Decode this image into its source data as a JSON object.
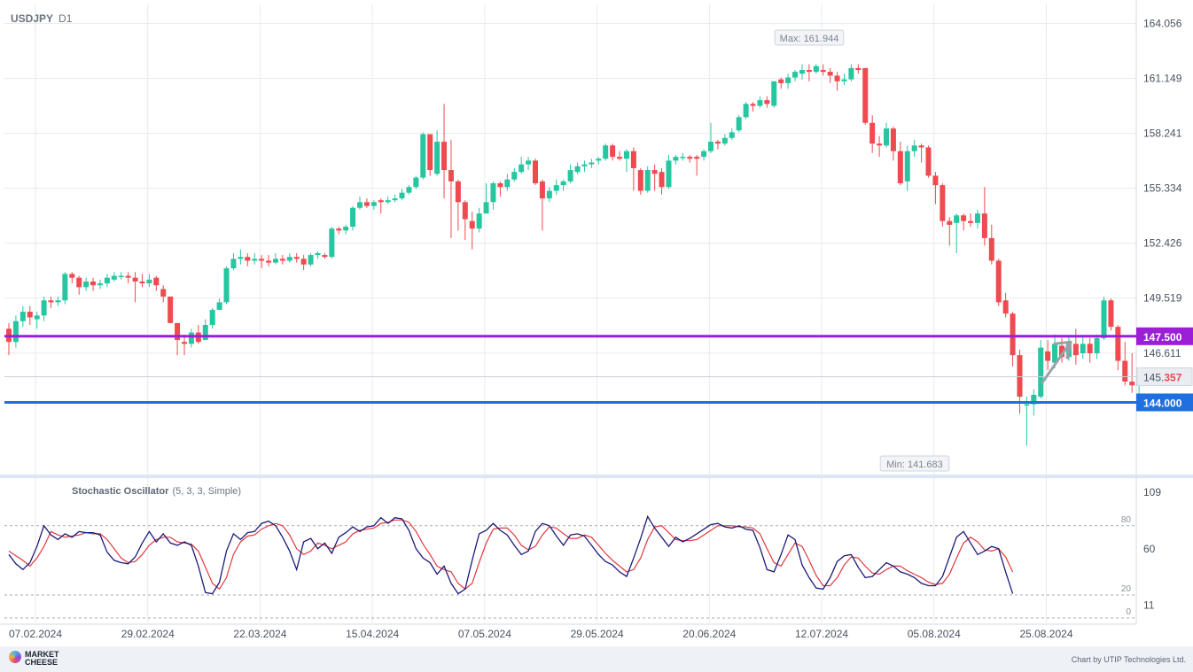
{
  "header": {
    "symbol": "USDJPY",
    "timeframe": "D1"
  },
  "oscillator": {
    "name": "Stochastic Oscillator",
    "params": "(5, 3, 3, Simple)"
  },
  "footer": {
    "logo_line1": "MARKET",
    "logo_line2": "CHEESE",
    "credit": "Chart by UTIP Technologies Ltd."
  },
  "colors": {
    "up": "#26c6a0",
    "down": "#ef4a4f",
    "level_147": "#9b1fd6",
    "level_144": "#1e6fe0",
    "k_line": "#1c1a78",
    "d_line": "#e0393f",
    "grid": "#e6eaf0"
  },
  "chart_data": {
    "type": "candlestick",
    "symbol": "USDJPY",
    "timeframe": "D1",
    "price_axis": {
      "ticks": [
        "164.056",
        "161.149",
        "158.241",
        "155.334",
        "152.426",
        "149.519",
        "146.611"
      ],
      "range": [
        140.6,
        164.6
      ]
    },
    "date_axis": {
      "ticks": [
        "07.02.2024",
        "29.02.2024",
        "22.03.2024",
        "15.04.2024",
        "07.05.2024",
        "29.05.2024",
        "20.06.2024",
        "12.07.2024",
        "05.08.2024",
        "25.08.2024"
      ]
    },
    "levels": [
      {
        "label": "147.500",
        "value": 147.5,
        "color": "#9b1fd6"
      },
      {
        "label": "144.000",
        "value": 144.0,
        "color": "#1e6fe0"
      }
    ],
    "current_price": {
      "main": "145.",
      "highlight": "357",
      "value": 145.357
    },
    "annotations": {
      "max": "Max: 161.944",
      "min": "Min: 141.683"
    },
    "arrow": {
      "direction": "up",
      "from": 145.7,
      "to": 147.2
    },
    "candles": [
      [
        147.9,
        147.2,
        148.2,
        146.5
      ],
      [
        147.2,
        148.3,
        148.6,
        146.9
      ],
      [
        148.3,
        148.8,
        149.1,
        148.0
      ],
      [
        148.8,
        148.5,
        149.1,
        148.1
      ],
      [
        148.4,
        148.6,
        148.8,
        147.9
      ],
      [
        148.6,
        149.4,
        149.6,
        148.3
      ],
      [
        149.4,
        149.3,
        149.6,
        149.0
      ],
      [
        149.3,
        149.4,
        149.6,
        149.1
      ],
      [
        149.4,
        150.8,
        150.9,
        149.2
      ],
      [
        150.8,
        150.6,
        150.9,
        150.3
      ],
      [
        150.6,
        150.1,
        150.7,
        149.7
      ],
      [
        150.1,
        150.4,
        150.6,
        149.9
      ],
      [
        150.4,
        150.2,
        150.6,
        149.9
      ],
      [
        150.2,
        150.3,
        150.5,
        150.0
      ],
      [
        150.3,
        150.6,
        150.8,
        150.1
      ],
      [
        150.5,
        150.7,
        150.9,
        150.4
      ],
      [
        150.7,
        150.7,
        150.9,
        150.5
      ],
      [
        150.7,
        150.6,
        150.9,
        150.3
      ],
      [
        150.6,
        150.4,
        150.9,
        149.3
      ],
      [
        150.4,
        150.3,
        150.8,
        150.1
      ],
      [
        150.3,
        150.5,
        150.8,
        150.1
      ],
      [
        150.6,
        150.2,
        150.7,
        149.9
      ],
      [
        150.0,
        149.6,
        150.2,
        149.3
      ],
      [
        149.6,
        148.2,
        149.6,
        148.2
      ],
      [
        148.2,
        147.3,
        147.8,
        146.5
      ],
      [
        147.2,
        147.1,
        147.6,
        146.5
      ],
      [
        147.1,
        147.7,
        147.9,
        146.9
      ],
      [
        147.7,
        147.2,
        148.1,
        147.1
      ],
      [
        147.3,
        148.1,
        148.4,
        147.8
      ],
      [
        148.1,
        148.9,
        149.0,
        147.9
      ],
      [
        148.9,
        149.3,
        149.5,
        148.9
      ],
      [
        149.3,
        151.1,
        151.2,
        149.2
      ],
      [
        151.1,
        151.6,
        151.9,
        151.0
      ],
      [
        151.6,
        151.7,
        152.1,
        151.3
      ],
      [
        151.7,
        151.5,
        151.9,
        151.2
      ],
      [
        151.5,
        151.6,
        151.9,
        151.3
      ],
      [
        151.6,
        151.5,
        151.8,
        151.1
      ],
      [
        151.5,
        151.4,
        151.8,
        151.2
      ],
      [
        151.4,
        151.6,
        151.9,
        151.3
      ],
      [
        151.6,
        151.5,
        151.8,
        151.3
      ],
      [
        151.5,
        151.7,
        151.9,
        151.4
      ],
      [
        151.7,
        151.6,
        151.9,
        151.4
      ],
      [
        151.6,
        151.3,
        151.8,
        151.0
      ],
      [
        151.3,
        151.8,
        151.9,
        151.2
      ],
      [
        151.8,
        151.9,
        152.0,
        151.6
      ],
      [
        151.8,
        151.7,
        151.9,
        151.6
      ],
      [
        151.7,
        153.2,
        153.3,
        151.6
      ],
      [
        153.2,
        153.1,
        153.3,
        152.9
      ],
      [
        153.1,
        153.3,
        153.4,
        152.9
      ],
      [
        153.3,
        154.3,
        154.4,
        153.1
      ],
      [
        154.3,
        154.6,
        154.9,
        154.2
      ],
      [
        154.6,
        154.4,
        154.8,
        154.3
      ],
      [
        154.4,
        154.6,
        154.7,
        154.2
      ],
      [
        154.7,
        154.6,
        154.8,
        154.0
      ],
      [
        154.6,
        154.7,
        154.9,
        154.5
      ],
      [
        154.7,
        154.8,
        155.0,
        154.6
      ],
      [
        154.8,
        155.1,
        155.3,
        154.7
      ],
      [
        155.1,
        155.4,
        155.5,
        155.0
      ],
      [
        155.4,
        155.9,
        156.0,
        155.3
      ],
      [
        155.9,
        158.2,
        158.3,
        155.8
      ],
      [
        158.2,
        156.3,
        158.2,
        156.0
      ],
      [
        156.1,
        157.8,
        158.4,
        156.0
      ],
      [
        157.8,
        156.3,
        159.8,
        154.8
      ],
      [
        156.3,
        155.7,
        157.9,
        152.7
      ],
      [
        155.7,
        154.6,
        155.8,
        153.1
      ],
      [
        154.6,
        153.7,
        154.7,
        152.6
      ],
      [
        153.6,
        153.2,
        154.1,
        152.1
      ],
      [
        153.2,
        154.0,
        154.3,
        153.0
      ],
      [
        154.0,
        154.6,
        155.6,
        154.5
      ],
      [
        154.6,
        155.6,
        155.7,
        154.2
      ],
      [
        155.6,
        155.4,
        155.7,
        154.9
      ],
      [
        155.4,
        155.8,
        156.1,
        155.2
      ],
      [
        155.8,
        156.2,
        156.4,
        155.7
      ],
      [
        156.2,
        156.6,
        157.0,
        156.1
      ],
      [
        156.6,
        156.8,
        157.0,
        156.3
      ],
      [
        156.8,
        155.6,
        156.9,
        155.5
      ],
      [
        155.7,
        154.8,
        155.8,
        153.1
      ],
      [
        154.8,
        155.2,
        155.4,
        154.6
      ],
      [
        155.2,
        155.5,
        155.8,
        155.0
      ],
      [
        155.5,
        155.7,
        155.8,
        155.2
      ],
      [
        155.7,
        156.3,
        156.6,
        155.6
      ],
      [
        156.2,
        156.5,
        156.7,
        156.1
      ],
      [
        156.5,
        156.6,
        156.8,
        156.2
      ],
      [
        156.6,
        156.7,
        156.9,
        156.4
      ],
      [
        156.8,
        156.9,
        157.0,
        156.6
      ],
      [
        156.9,
        157.6,
        157.7,
        156.8
      ],
      [
        157.6,
        157.0,
        157.7,
        156.8
      ],
      [
        157.0,
        156.9,
        157.3,
        156.8
      ],
      [
        156.9,
        157.3,
        157.4,
        156.2
      ],
      [
        157.3,
        156.4,
        157.5,
        155.2
      ],
      [
        156.3,
        155.2,
        156.4,
        155.0
      ],
      [
        155.2,
        156.3,
        156.5,
        155.1
      ],
      [
        156.3,
        156.1,
        156.6,
        155.2
      ],
      [
        156.2,
        155.4,
        156.4,
        155.0
      ],
      [
        155.4,
        156.8,
        157.1,
        155.3
      ],
      [
        156.8,
        157.0,
        157.1,
        156.6
      ],
      [
        157.0,
        157.0,
        157.2,
        156.8
      ],
      [
        157.0,
        156.9,
        157.1,
        156.7
      ],
      [
        157.0,
        156.9,
        157.1,
        156.0
      ],
      [
        157.0,
        157.3,
        157.4,
        156.8
      ],
      [
        157.3,
        157.8,
        158.8,
        157.2
      ],
      [
        157.8,
        157.7,
        157.9,
        157.4
      ],
      [
        157.7,
        158.0,
        158.2,
        157.6
      ],
      [
        158.0,
        158.3,
        158.5,
        157.9
      ],
      [
        158.4,
        159.1,
        159.2,
        158.3
      ],
      [
        159.1,
        159.8,
        159.9,
        159.0
      ],
      [
        159.8,
        159.7,
        159.9,
        159.4
      ],
      [
        159.7,
        160.0,
        160.2,
        159.6
      ],
      [
        160.0,
        159.8,
        160.2,
        159.6
      ],
      [
        159.7,
        161.0,
        161.0,
        159.6
      ],
      [
        161.1,
        160.9,
        161.2,
        160.6
      ],
      [
        160.9,
        161.2,
        161.4,
        160.6
      ],
      [
        161.2,
        161.5,
        161.6,
        161.0
      ],
      [
        161.4,
        161.6,
        161.9,
        161.1
      ],
      [
        161.6,
        161.5,
        161.9,
        161.0
      ],
      [
        161.5,
        161.8,
        161.9,
        161.4
      ],
      [
        161.6,
        161.5,
        161.9,
        161.3
      ],
      [
        161.5,
        161.3,
        161.7,
        160.9
      ],
      [
        161.3,
        161.0,
        161.5,
        160.5
      ],
      [
        161.0,
        161.1,
        161.4,
        160.8
      ],
      [
        161.1,
        161.7,
        161.9,
        161.0
      ],
      [
        161.7,
        161.6,
        161.9,
        161.4
      ],
      [
        161.7,
        158.8,
        161.7,
        158.7
      ],
      [
        158.8,
        157.7,
        159.2,
        157.2
      ],
      [
        157.7,
        157.6,
        158.1,
        157.0
      ],
      [
        157.6,
        158.5,
        158.8,
        157.5
      ],
      [
        158.5,
        157.3,
        158.6,
        156.8
      ],
      [
        157.3,
        155.6,
        157.8,
        155.5
      ],
      [
        155.7,
        157.3,
        157.6,
        155.2
      ],
      [
        157.3,
        157.6,
        157.9,
        157.0
      ],
      [
        157.6,
        157.5,
        157.7,
        156.7
      ],
      [
        157.5,
        156.0,
        157.6,
        155.9
      ],
      [
        156.0,
        155.5,
        156.2,
        154.5
      ],
      [
        155.5,
        153.6,
        155.6,
        153.3
      ],
      [
        153.6,
        153.4,
        153.8,
        152.3
      ],
      [
        153.5,
        153.9,
        154.0,
        151.9
      ],
      [
        153.9,
        153.6,
        154.0,
        153.1
      ],
      [
        153.6,
        153.5,
        154.0,
        153.3
      ],
      [
        153.5,
        154.0,
        154.2,
        153.2
      ],
      [
        154.0,
        152.7,
        155.4,
        152.3
      ],
      [
        152.7,
        151.5,
        153.4,
        151.3
      ],
      [
        151.5,
        149.3,
        151.6,
        149.1
      ],
      [
        149.4,
        148.7,
        149.8,
        148.5
      ],
      [
        148.7,
        146.5,
        148.8,
        145.9
      ],
      [
        146.5,
        144.3,
        146.8,
        143.4
      ],
      [
        143.9,
        143.9,
        144.3,
        141.7
      ],
      [
        143.9,
        144.4,
        144.7,
        143.3
      ],
      [
        144.3,
        146.9,
        147.3,
        144.2
      ],
      [
        146.7,
        146.2,
        147.3,
        145.7
      ],
      [
        146.1,
        147.1,
        147.6,
        145.8
      ],
      [
        147.0,
        146.4,
        147.4,
        146.1
      ],
      [
        146.4,
        147.1,
        147.5,
        146.2
      ],
      [
        147.1,
        146.5,
        147.9,
        146.0
      ],
      [
        146.6,
        147.1,
        147.5,
        146.3
      ],
      [
        147.1,
        146.6,
        147.4,
        146.1
      ],
      [
        146.6,
        147.4,
        147.6,
        146.3
      ],
      [
        147.4,
        149.4,
        149.6,
        147.3
      ],
      [
        149.4,
        148.0,
        149.5,
        147.8
      ],
      [
        148.0,
        146.2,
        148.1,
        145.7
      ],
      [
        146.2,
        145.1,
        147.2,
        144.9
      ],
      [
        145.1,
        144.9,
        146.6,
        144.5
      ],
      [
        145.0,
        145.0,
        145.5,
        144.3
      ],
      [
        145.0,
        145.4,
        145.6,
        144.9
      ]
    ],
    "stochastic": {
      "axis_ticks": [
        "109",
        "60",
        "11"
      ],
      "levels": [
        {
          "label": "80",
          "value": 80
        },
        {
          "label": "20",
          "value": 20
        },
        {
          "label": "0",
          "value": 0
        }
      ],
      "k": [
        55,
        47,
        42,
        48,
        62,
        80,
        72,
        68,
        73,
        70,
        75,
        74,
        74,
        72,
        57,
        50,
        48,
        47,
        53,
        65,
        75,
        66,
        73,
        65,
        63,
        66,
        63,
        45,
        22,
        21,
        31,
        58,
        73,
        68,
        74,
        75,
        82,
        84,
        80,
        70,
        58,
        42,
        66,
        69,
        60,
        65,
        56,
        70,
        74,
        79,
        75,
        79,
        80,
        87,
        82,
        87,
        86,
        76,
        60,
        52,
        48,
        38,
        45,
        30,
        21,
        25,
        50,
        73,
        76,
        82,
        76,
        72,
        63,
        55,
        58,
        75,
        82,
        80,
        71,
        63,
        72,
        73,
        71,
        63,
        55,
        49,
        46,
        40,
        36,
        52,
        69,
        88,
        78,
        70,
        62,
        70,
        66,
        69,
        73,
        77,
        81,
        82,
        79,
        78,
        80,
        77,
        76,
        61,
        42,
        40,
        55,
        72,
        68,
        46,
        35,
        26,
        25,
        35,
        49,
        54,
        55,
        44,
        35,
        36,
        42,
        48,
        45,
        40,
        38,
        35,
        30,
        28,
        28,
        36,
        53,
        70,
        75,
        65,
        55,
        58,
        62,
        60,
        40,
        21
      ],
      "d": [
        58,
        54,
        50,
        45,
        52,
        62,
        75,
        72,
        70,
        71,
        72,
        74,
        73,
        73,
        68,
        60,
        52,
        48,
        49,
        55,
        63,
        68,
        70,
        70,
        66,
        65,
        64,
        58,
        44,
        30,
        25,
        35,
        55,
        66,
        71,
        72,
        77,
        80,
        82,
        80,
        72,
        60,
        55,
        58,
        65,
        63,
        60,
        63,
        66,
        73,
        76,
        77,
        78,
        82,
        83,
        85,
        85,
        83,
        75,
        64,
        55,
        45,
        42,
        40,
        30,
        25,
        30,
        48,
        65,
        77,
        78,
        78,
        72,
        63,
        59,
        62,
        72,
        79,
        78,
        73,
        69,
        69,
        72,
        70,
        63,
        56,
        50,
        45,
        40,
        42,
        52,
        68,
        79,
        80,
        74,
        68,
        67,
        67,
        68,
        72,
        76,
        80,
        80,
        80,
        79,
        79,
        78,
        73,
        60,
        48,
        45,
        55,
        65,
        62,
        50,
        37,
        28,
        28,
        35,
        46,
        53,
        52,
        45,
        39,
        38,
        42,
        45,
        45,
        41,
        38,
        35,
        31,
        29,
        30,
        38,
        52,
        65,
        70,
        66,
        59,
        58,
        60,
        53,
        40
      ]
    }
  }
}
